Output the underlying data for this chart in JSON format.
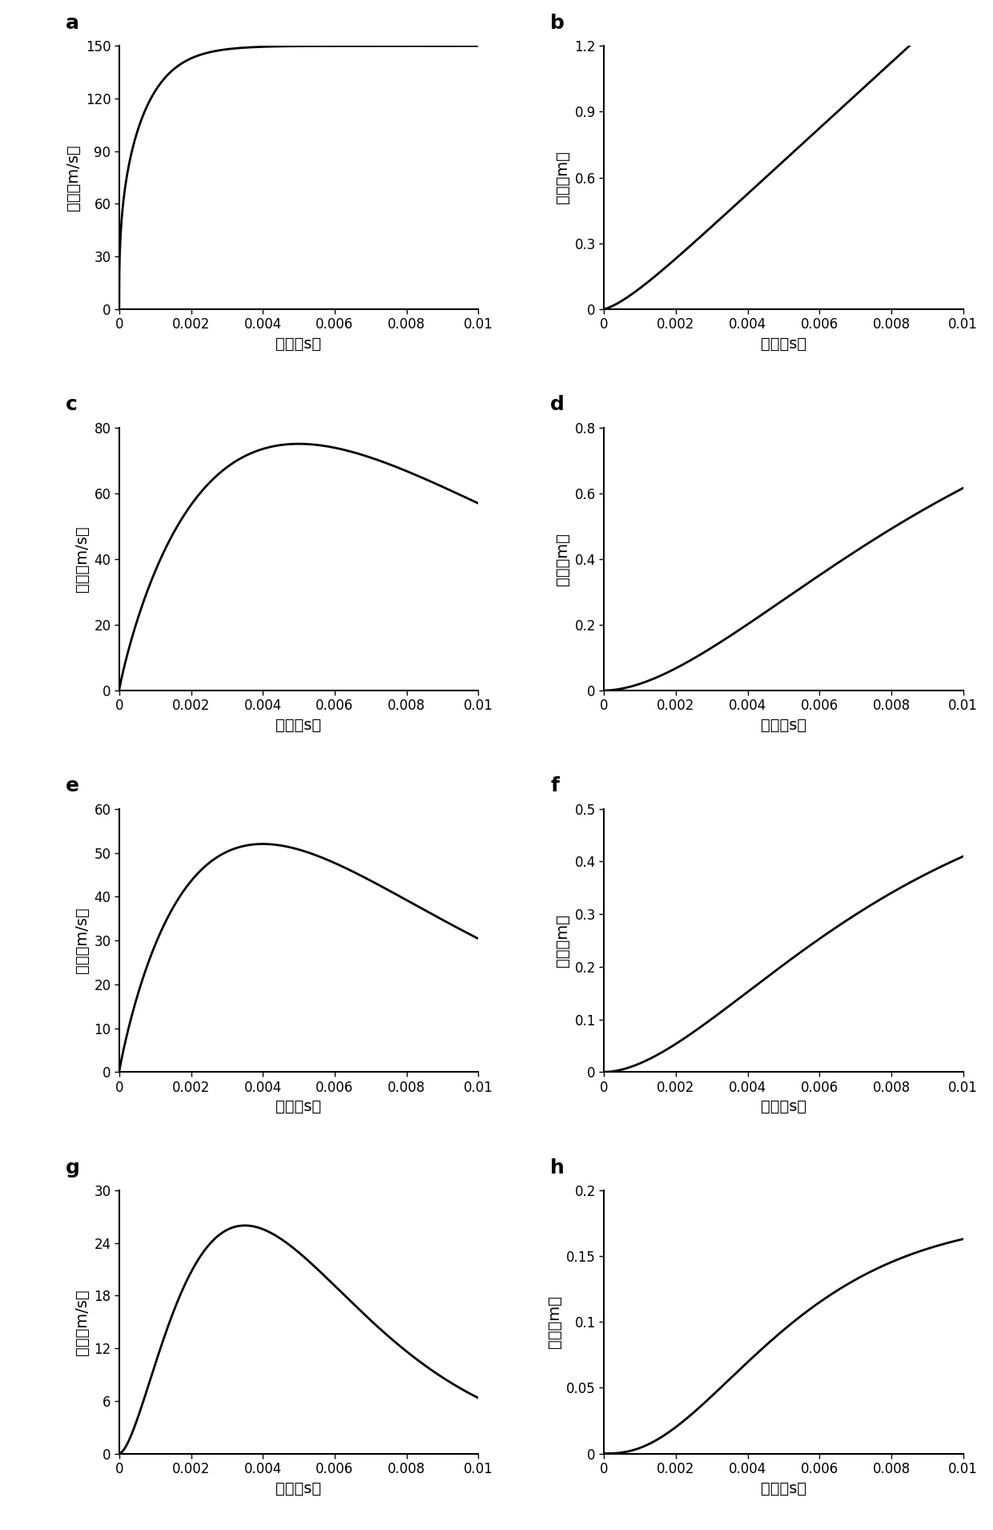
{
  "panels": [
    {
      "label": "a",
      "ylabel": "速度（m/s）",
      "ylim": [
        0,
        150
      ],
      "yticks": [
        0,
        30,
        60,
        90,
        120,
        150
      ],
      "curve_type": "a_vel",
      "peak_vel": 150,
      "tau": 0.0015,
      "alpha": 0.5
    },
    {
      "label": "b",
      "ylabel": "位移（m）",
      "ylim": [
        0,
        1.2
      ],
      "yticks": [
        0,
        0.3,
        0.6,
        0.9,
        1.2
      ],
      "curve_type": "b_disp",
      "tau": 0.0015
    },
    {
      "label": "c",
      "ylabel": "速度（m/s）",
      "ylim": [
        0,
        80
      ],
      "yticks": [
        0,
        20,
        40,
        60,
        80
      ],
      "curve_type": "bell_vel",
      "peak_vel": 75,
      "peak_t": 0.005,
      "decay": 180
    },
    {
      "label": "d",
      "ylabel": "位移（m）",
      "ylim": [
        0,
        0.8
      ],
      "yticks": [
        0,
        0.2,
        0.4,
        0.6,
        0.8
      ],
      "curve_type": "bell_disp",
      "peak_vel": 75,
      "peak_t": 0.005,
      "decay": 180
    },
    {
      "label": "e",
      "ylabel": "速度（m/s）",
      "ylim": [
        0,
        60
      ],
      "yticks": [
        0,
        10,
        20,
        30,
        40,
        50,
        60
      ],
      "curve_type": "bell_vel",
      "peak_vel": 52,
      "peak_t": 0.004,
      "decay": 230
    },
    {
      "label": "f",
      "ylabel": "位移（m）",
      "ylim": [
        0,
        0.5
      ],
      "yticks": [
        0,
        0.1,
        0.2,
        0.3,
        0.4,
        0.5
      ],
      "curve_type": "bell_disp",
      "peak_vel": 52,
      "peak_t": 0.004,
      "decay": 230
    },
    {
      "label": "g",
      "ylabel": "速度（m/s）",
      "ylim": [
        0,
        30
      ],
      "yticks": [
        0,
        6,
        12,
        18,
        24,
        30
      ],
      "curve_type": "bell_vel",
      "peak_vel": 26,
      "peak_t": 0.0035,
      "decay": 500
    },
    {
      "label": "h",
      "ylabel": "位移（m）",
      "ylim": [
        0,
        0.2
      ],
      "yticks": [
        0,
        0.05,
        0.1,
        0.15,
        0.2
      ],
      "curve_type": "bell_disp",
      "peak_vel": 26,
      "peak_t": 0.0035,
      "decay": 500
    }
  ],
  "xlabel": "时间（s）",
  "xlim": [
    0,
    0.01
  ],
  "xticks": [
    0,
    0.002,
    0.004,
    0.006,
    0.008,
    0.01
  ],
  "line_color": "#000000",
  "line_width": 2.0,
  "background_color": "#ffffff",
  "label_fontsize": 18,
  "tick_fontsize": 12,
  "axis_label_fontsize": 14
}
